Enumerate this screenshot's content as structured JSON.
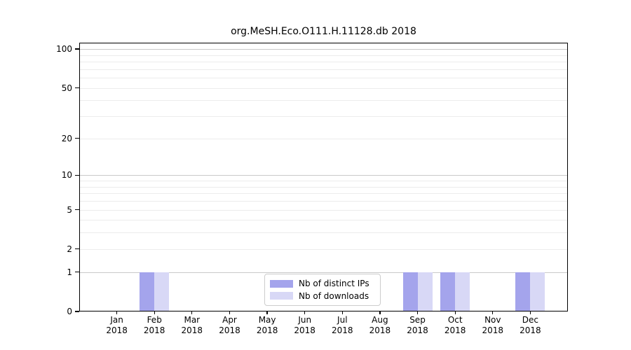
{
  "chart_data": {
    "type": "bar",
    "title": "org.MeSH.Eco.O111.H.11128.db 2018",
    "categories": [
      "Jan",
      "Feb",
      "Mar",
      "Apr",
      "May",
      "Jun",
      "Jul",
      "Aug",
      "Sep",
      "Oct",
      "Nov",
      "Dec"
    ],
    "x_year_label": "2018",
    "series": [
      {
        "name": "Nb of distinct IPs",
        "color": "#a4a4ec",
        "values": [
          0,
          1,
          0,
          0,
          0,
          0,
          0,
          0,
          1,
          1,
          0,
          1
        ]
      },
      {
        "name": "Nb of downloads",
        "color": "#d8d8f6",
        "values": [
          0,
          1,
          0,
          0,
          0,
          0,
          0,
          0,
          1,
          1,
          0,
          1
        ]
      }
    ],
    "y_ticks": [
      0,
      1,
      2,
      5,
      10,
      20,
      50,
      100
    ],
    "y_major_gridlines": [
      1,
      10,
      100
    ],
    "y_minor_gridlines": [
      2,
      3,
      4,
      5,
      6,
      7,
      8,
      9,
      20,
      30,
      40,
      50,
      60,
      70,
      80,
      90
    ],
    "scale": "log10(1+y)",
    "ylim": [
      0,
      112
    ],
    "xlabel": "",
    "ylabel": "",
    "grid": "horizontal",
    "legend_position": "inside-bottom-center",
    "colors": {
      "major_grid": "#c8c8c8",
      "minor_grid": "#ececec",
      "axis": "#000000",
      "background": "#ffffff"
    }
  }
}
